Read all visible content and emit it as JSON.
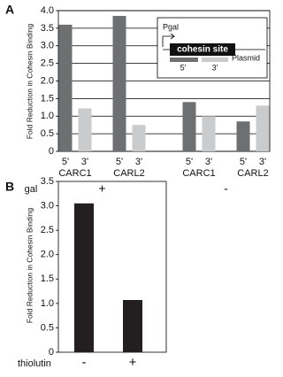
{
  "chart_data": [
    {
      "type": "bar",
      "panel": "A",
      "ylabel": "Fold Reduction in Cohesin Binding",
      "categories": [
        "CARC1",
        "CARL2",
        "CARC1",
        "CARL2"
      ],
      "series": [
        {
          "name": "5'",
          "color": "#6e6f71",
          "values": [
            3.6,
            3.85,
            1.4,
            0.85
          ]
        },
        {
          "name": "3'",
          "color": "#c9cbcd",
          "values": [
            1.22,
            0.75,
            1.0,
            1.3
          ]
        }
      ],
      "ylim": [
        0,
        4
      ],
      "yticks": [
        0,
        0.5,
        {
          "value": 1,
          "label": "1.0"
        },
        1.5,
        {
          "value": 2,
          "label": "2.0"
        },
        2.5,
        {
          "value": 3,
          "label": "3.0"
        },
        3.5,
        {
          "value": 4,
          "label": "4.0"
        }
      ],
      "grid": true,
      "condition": {
        "label": "gal",
        "values": [
          "+",
          "-"
        ]
      },
      "inset": {
        "promoter": "Pgal",
        "site": "cohesin site",
        "plasmid": "Plasmid"
      }
    },
    {
      "type": "bar",
      "panel": "B",
      "ylabel": "Fold Reduction in Cohesin Binding",
      "xlabel": "thiolutin",
      "categories": [
        "-",
        "+"
      ],
      "values": [
        3.05,
        1.07
      ],
      "color": "#231f20",
      "ylim": [
        0,
        3.5
      ],
      "yticks": [
        0,
        0.5,
        {
          "value": 1,
          "label": "1.0"
        },
        1.5,
        {
          "value": 2,
          "label": "2.0"
        },
        2.5,
        {
          "value": 3,
          "label": "3.0"
        },
        3.5
      ],
      "grid": false
    }
  ]
}
